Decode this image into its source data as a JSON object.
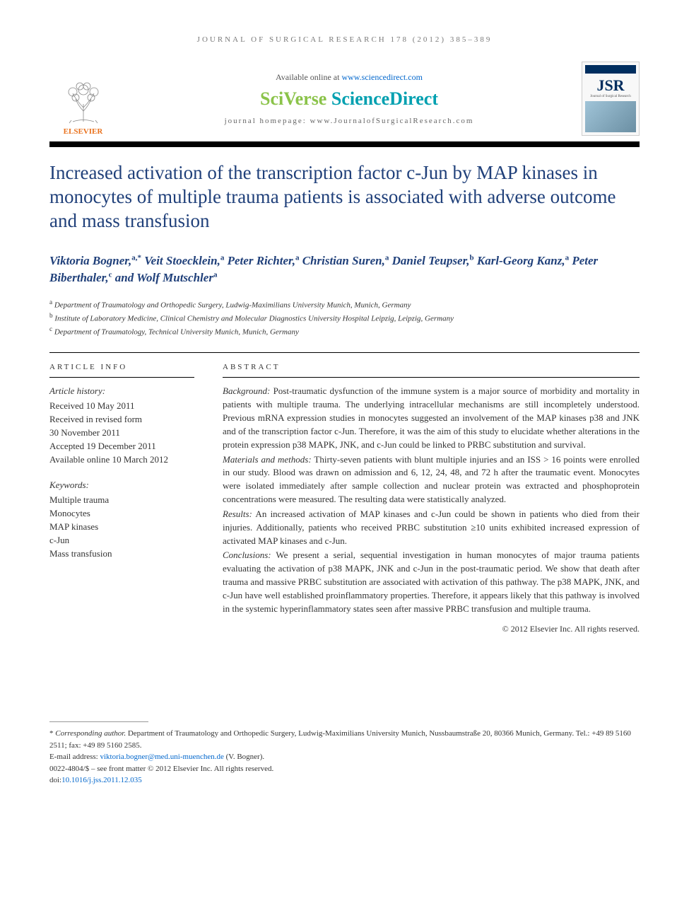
{
  "running_head": "JOURNAL OF SURGICAL RESEARCH 178 (2012) 385–389",
  "header": {
    "publisher_name": "ELSEVIER",
    "publisher_color": "#e9711c",
    "available_text": "Available online at ",
    "available_url": "www.sciencedirect.com",
    "platform_part1": "SciVerse ",
    "platform_part2": "ScienceDirect",
    "platform_color1": "#8bc34a",
    "platform_color2": "#00a0b0",
    "homepage_label": "journal homepage: ",
    "homepage_url": "www.JournalofSurgicalResearch.com",
    "cover_abbrev": "JSR",
    "cover_subtitle": "Journal of Surgical Research"
  },
  "title": "Increased activation of the transcription factor c-Jun by MAP kinases in monocytes of multiple trauma patients is associated with adverse outcome and mass transfusion",
  "title_color": "#20407a",
  "authors_html": "Viktoria Bogner,<sup>a,*</sup> Veit Stoecklein,<sup>a</sup> Peter Richter,<sup>a</sup> Christian Suren,<sup>a</sup> Daniel Teupser,<sup>b</sup> Karl-Georg Kanz,<sup>a</sup> Peter Biberthaler,<sup>c</sup> and Wolf Mutschler<sup>a</sup>",
  "affiliations": [
    {
      "marker": "a",
      "text": "Department of Traumatology and Orthopedic Surgery, Ludwig-Maximilians University Munich, Munich, Germany"
    },
    {
      "marker": "b",
      "text": "Institute of Laboratory Medicine, Clinical Chemistry and Molecular Diagnostics University Hospital Leipzig, Leipzig, Germany"
    },
    {
      "marker": "c",
      "text": "Department of Traumatology, Technical University Munich, Munich, Germany"
    }
  ],
  "info_head": "ARTICLE INFO",
  "abstract_head": "ABSTRACT",
  "history": {
    "head": "Article history:",
    "lines": [
      "Received 10 May 2011",
      "Received in revised form",
      "30 November 2011",
      "Accepted 19 December 2011",
      "Available online 10 March 2012"
    ]
  },
  "keywords": {
    "head": "Keywords:",
    "items": [
      "Multiple trauma",
      "Monocytes",
      "MAP kinases",
      "c-Jun",
      "Mass transfusion"
    ]
  },
  "abstract": {
    "background_label": "Background:",
    "background": " Post-traumatic dysfunction of the immune system is a major source of morbidity and mortality in patients with multiple trauma. The underlying intracellular mechanisms are still incompletely understood. Previous mRNA expression studies in monocytes suggested an involvement of the MAP kinases p38 and JNK and of the transcription factor c-Jun. Therefore, it was the aim of this study to elucidate whether alterations in the protein expression p38 MAPK, JNK, and c-Jun could be linked to PRBC substitution and survival.",
    "methods_label": "Materials and methods:",
    "methods": " Thirty-seven patients with blunt multiple injuries and an ISS > 16 points were enrolled in our study. Blood was drawn on admission and 6, 12, 24, 48, and 72 h after the traumatic event. Monocytes were isolated immediately after sample collection and nuclear protein was extracted and phosphoprotein concentrations were measured. The resulting data were statistically analyzed.",
    "results_label": "Results:",
    "results": " An increased activation of MAP kinases and c-Jun could be shown in patients who died from their injuries. Additionally, patients who received PRBC substitution ≥10 units exhibited increased expression of activated MAP kinases and c-Jun.",
    "conclusions_label": "Conclusions:",
    "conclusions": " We present a serial, sequential investigation in human monocytes of major trauma patients evaluating the activation of p38 MAPK, JNK and c-Jun in the post-traumatic period. We show that death after trauma and massive PRBC substitution are associated with activation of this pathway. The p38 MAPK, JNK, and c-Jun have well established proinflammatory properties. Therefore, it appears likely that this pathway is involved in the systemic hyperinflammatory states seen after massive PRBC transfusion and multiple trauma."
  },
  "copyright": "© 2012 Elsevier Inc. All rights reserved.",
  "footer": {
    "corr_marker": "* ",
    "corr_label": "Corresponding author.",
    "corr_text": " Department of Traumatology and Orthopedic Surgery, Ludwig-Maximilians University Munich, Nussbaumstraße 20, 80366 Munich, Germany. Tel.: +49 89 5160 2511; fax: +49 89 5160 2585.",
    "email_label": "E-mail address: ",
    "email": "viktoria.bogner@med.uni-muenchen.de",
    "email_suffix": " (V. Bogner).",
    "issn_line": "0022-4804/$ – see front matter © 2012 Elsevier Inc. All rights reserved.",
    "doi_label": "doi:",
    "doi": "10.1016/j.jss.2011.12.035"
  },
  "colors": {
    "link": "#0066cc",
    "text": "#333333",
    "rule": "#000000"
  }
}
